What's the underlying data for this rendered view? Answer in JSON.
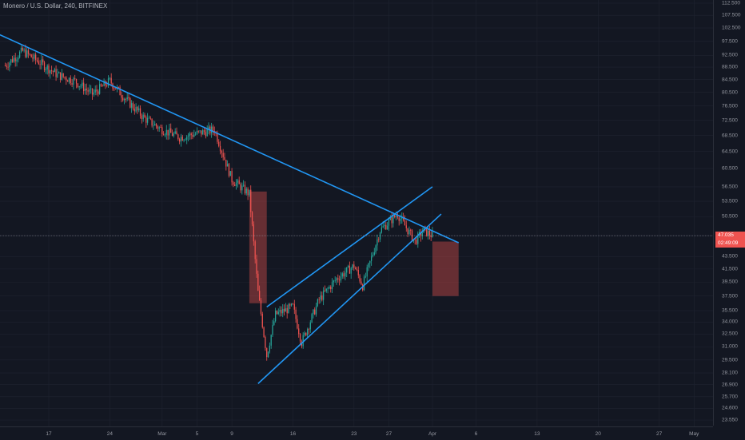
{
  "header": {
    "symbol": "Monero / U.S. Dollar",
    "interval": "240",
    "exchange": "BITFINEX"
  },
  "colors": {
    "background": "#131722",
    "grid": "#1f2330",
    "up": "#26a69a",
    "down": "#ef5350",
    "trendline": "#2196f3",
    "target_box": "#ef5350"
  },
  "price_badge": {
    "price": "47.035",
    "countdown": "02:49:09"
  },
  "chart_data": {
    "type": "candlestick",
    "title": "",
    "grid": true,
    "y_axis": {
      "position": "right",
      "scale": "log",
      "ticks": [
        "112.500",
        "107.500",
        "102.500",
        "97.500",
        "92.500",
        "88.500",
        "84.500",
        "80.500",
        "76.500",
        "72.500",
        "68.500",
        "64.500",
        "60.500",
        "56.500",
        "53.500",
        "50.500",
        "47.035",
        "43.500",
        "41.500",
        "39.500",
        "37.500",
        "35.500",
        "34.000",
        "32.500",
        "31.000",
        "29.500",
        "28.100",
        "26.900",
        "25.700",
        "24.600",
        "23.550"
      ]
    },
    "x_axis": {
      "ticks": [
        "17",
        "24",
        "Mar",
        "5",
        "9",
        "16",
        "23",
        "27",
        "Apr",
        "6",
        "13",
        "20",
        "27",
        "May"
      ]
    },
    "price_path": [
      [
        "2020-02-12",
        89
      ],
      [
        "2020-02-14",
        94
      ],
      [
        "2020-02-16",
        90
      ],
      [
        "2020-02-18",
        86
      ],
      [
        "2020-02-20",
        84
      ],
      [
        "2020-02-22",
        80
      ],
      [
        "2020-02-24",
        84
      ],
      [
        "2020-02-26",
        78
      ],
      [
        "2020-02-28",
        73
      ],
      [
        "2020-03-01",
        70
      ],
      [
        "2020-03-03",
        68
      ],
      [
        "2020-03-05",
        69
      ],
      [
        "2020-03-07",
        70
      ],
      [
        "2020-03-09",
        58
      ],
      [
        "2020-03-11",
        55
      ],
      [
        "2020-03-12",
        38
      ],
      [
        "2020-03-13",
        30
      ],
      [
        "2020-03-14",
        35
      ],
      [
        "2020-03-16",
        36
      ],
      [
        "2020-03-17",
        31.5
      ],
      [
        "2020-03-19",
        37
      ],
      [
        "2020-03-21",
        40
      ],
      [
        "2020-03-23",
        42
      ],
      [
        "2020-03-24",
        39
      ],
      [
        "2020-03-26",
        48
      ],
      [
        "2020-03-28",
        51
      ],
      [
        "2020-03-30",
        46
      ],
      [
        "2020-03-31",
        48
      ],
      [
        "2020-04-01",
        47
      ]
    ],
    "lines": [
      {
        "name": "descending trendline",
        "from": [
          "2020-02-10",
          102
        ],
        "to": [
          "2020-04-04",
          45.8
        ]
      },
      {
        "name": "channel upper",
        "from": [
          "2020-03-13",
          36
        ],
        "to": [
          "2020-04-01",
          56.5
        ]
      },
      {
        "name": "channel lower",
        "from": [
          "2020-03-12",
          27
        ],
        "to": [
          "2020-04-02",
          51
        ]
      }
    ],
    "boxes": [
      {
        "name": "drop box",
        "from": [
          "2020-03-11",
          55.5
        ],
        "to": [
          "2020-03-13",
          36.5
        ]
      },
      {
        "name": "target box",
        "from": [
          "2020-04-01",
          46
        ],
        "to": [
          "2020-04-04",
          37.5
        ]
      }
    ]
  }
}
